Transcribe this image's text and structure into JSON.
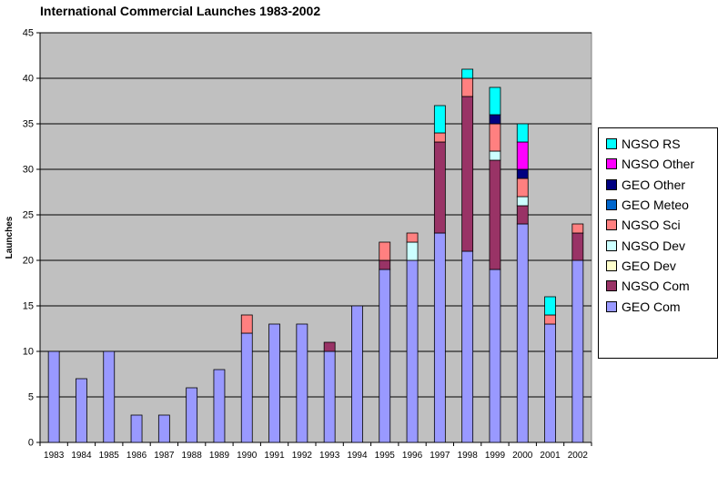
{
  "chart_data": {
    "type": "bar",
    "stacked": true,
    "title": "International Commercial Launches 1983-2002",
    "xlabel": "",
    "ylabel": "Launches",
    "ylim": [
      0,
      45
    ],
    "yticks": [
      0,
      5,
      10,
      15,
      20,
      25,
      30,
      35,
      40,
      45
    ],
    "grid": true,
    "legend_position": "right",
    "plot_background": "#c0c0c0",
    "categories": [
      "1983",
      "1984",
      "1985",
      "1986",
      "1987",
      "1988",
      "1989",
      "1990",
      "1991",
      "1992",
      "1993",
      "1994",
      "1995",
      "1996",
      "1997",
      "1998",
      "1999",
      "2000",
      "2001",
      "2002"
    ],
    "series": [
      {
        "name": "GEO Com",
        "color": "#9999ff",
        "values": [
          10,
          7,
          10,
          3,
          3,
          6,
          8,
          12,
          13,
          13,
          10,
          15,
          19,
          20,
          23,
          21,
          19,
          24,
          13,
          20
        ]
      },
      {
        "name": "NGSO Com",
        "color": "#993366",
        "values": [
          0,
          0,
          0,
          0,
          0,
          0,
          0,
          0,
          0,
          0,
          1,
          0,
          1,
          0,
          10,
          17,
          12,
          2,
          0,
          3
        ]
      },
      {
        "name": "GEO Dev",
        "color": "#ffffcc",
        "values": [
          0,
          0,
          0,
          0,
          0,
          0,
          0,
          0,
          0,
          0,
          0,
          0,
          0,
          0,
          0,
          0,
          0,
          0,
          0,
          0
        ]
      },
      {
        "name": "NGSO Dev",
        "color": "#ccffff",
        "values": [
          0,
          0,
          0,
          0,
          0,
          0,
          0,
          0,
          0,
          0,
          0,
          0,
          0,
          2,
          0,
          0,
          1,
          1,
          0,
          0
        ]
      },
      {
        "name": "NGSO Sci",
        "color": "#ff8080",
        "values": [
          0,
          0,
          0,
          0,
          0,
          0,
          0,
          2,
          0,
          0,
          0,
          0,
          2,
          1,
          1,
          2,
          3,
          2,
          1,
          1
        ]
      },
      {
        "name": "GEO Meteo",
        "color": "#0066cc",
        "values": [
          0,
          0,
          0,
          0,
          0,
          0,
          0,
          0,
          0,
          0,
          0,
          0,
          0,
          0,
          0,
          0,
          0,
          0,
          0,
          0
        ]
      },
      {
        "name": "GEO Other",
        "color": "#000080",
        "values": [
          0,
          0,
          0,
          0,
          0,
          0,
          0,
          0,
          0,
          0,
          0,
          0,
          0,
          0,
          0,
          0,
          1,
          1,
          0,
          0
        ]
      },
      {
        "name": "NGSO Other",
        "color": "#ff00ff",
        "values": [
          0,
          0,
          0,
          0,
          0,
          0,
          0,
          0,
          0,
          0,
          0,
          0,
          0,
          0,
          0,
          0,
          0,
          3,
          0,
          0
        ]
      },
      {
        "name": "NGSO RS",
        "color": "#00ffff",
        "values": [
          0,
          0,
          0,
          0,
          0,
          0,
          0,
          0,
          0,
          0,
          0,
          0,
          0,
          0,
          3,
          1,
          3,
          2,
          2,
          0
        ]
      }
    ]
  }
}
